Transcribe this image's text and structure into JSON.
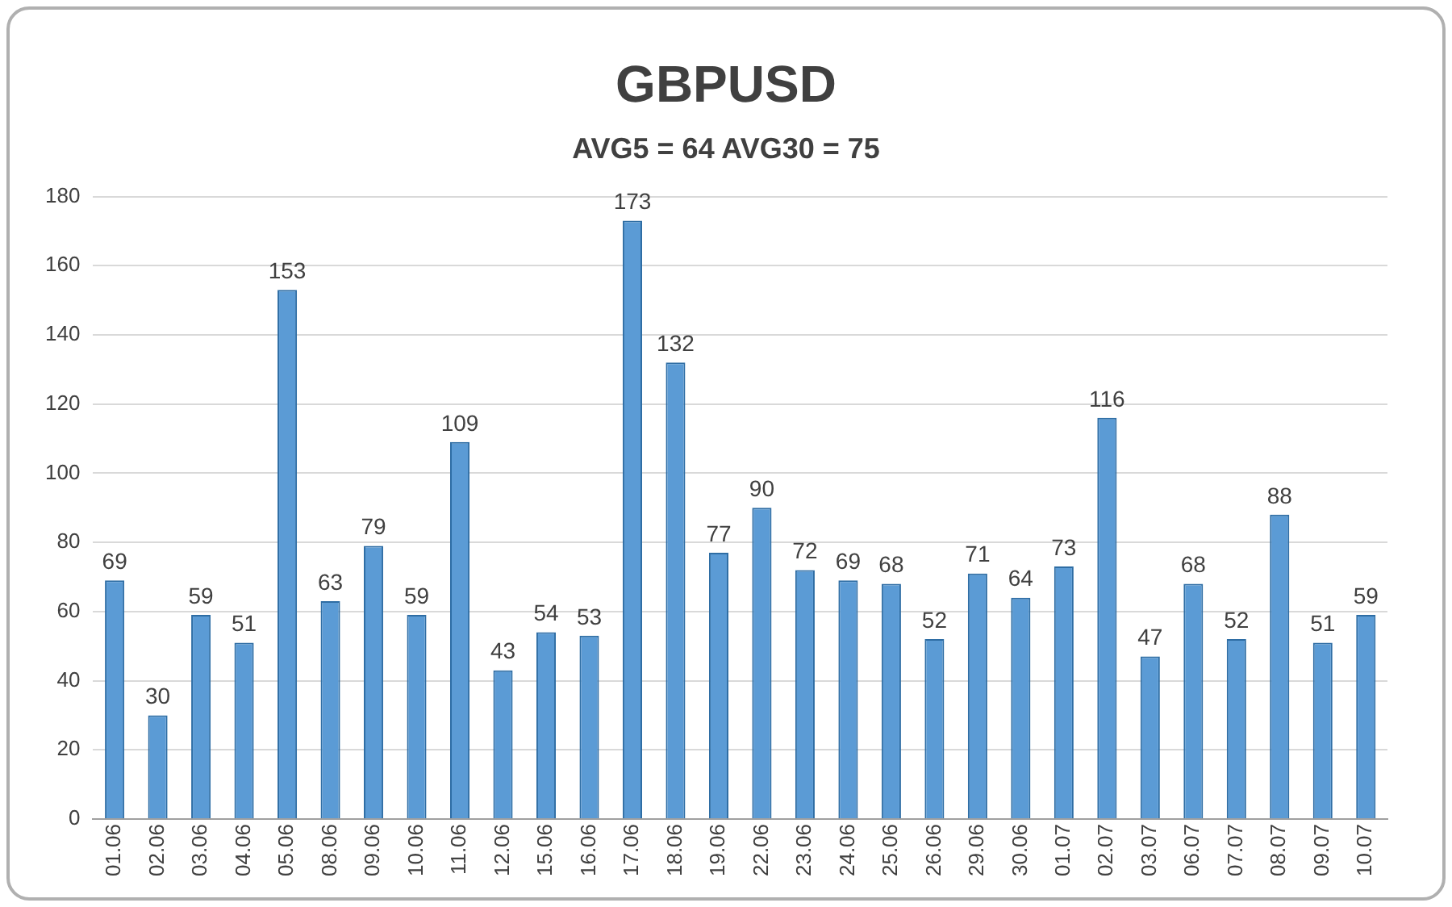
{
  "chart_data": {
    "type": "bar",
    "title": "GBPUSD",
    "subtitle": "AVG5 = 64 AVG30 = 75",
    "categories": [
      "01.06",
      "02.06",
      "03.06",
      "04.06",
      "05.06",
      "08.06",
      "09.06",
      "10.06",
      "11.06",
      "12.06",
      "15.06",
      "16.06",
      "17.06",
      "18.06",
      "19.06",
      "22.06",
      "23.06",
      "24.06",
      "25.06",
      "26.06",
      "29.06",
      "30.06",
      "01.07",
      "02.07",
      "03.07",
      "06.07",
      "07.07",
      "08.07",
      "09.07",
      "10.07"
    ],
    "values": [
      69,
      30,
      59,
      51,
      153,
      63,
      79,
      59,
      109,
      43,
      54,
      53,
      173,
      132,
      77,
      90,
      72,
      69,
      68,
      52,
      71,
      64,
      73,
      116,
      47,
      68,
      52,
      88,
      51,
      59
    ],
    "color": "#5b9bd5",
    "ylim": [
      0,
      180
    ],
    "yticks": [
      0,
      20,
      40,
      60,
      80,
      100,
      120,
      140,
      160,
      180
    ],
    "grid": "y",
    "data_labels": true
  }
}
